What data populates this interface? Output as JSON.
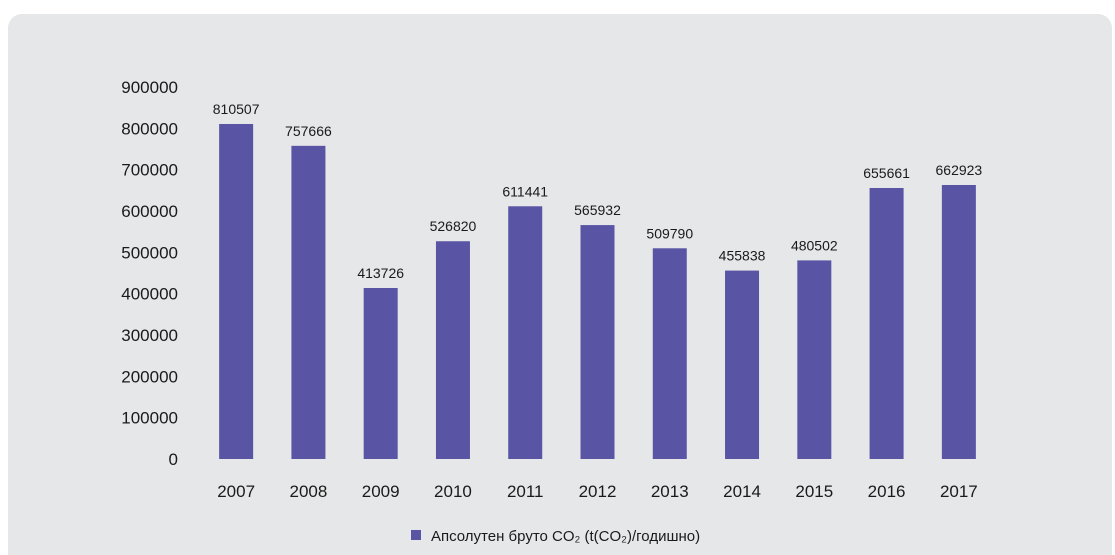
{
  "chart_data": {
    "type": "bar",
    "categories": [
      "2007",
      "2008",
      "2009",
      "2010",
      "2011",
      "2012",
      "2013",
      "2014",
      "2015",
      "2016",
      "2017"
    ],
    "series": [
      {
        "name": "Апсолутен бруто CO₂ (t(CO₂)/годишно)",
        "values": [
          810507,
          757666,
          413726,
          526820,
          611441,
          565932,
          509790,
          455838,
          480502,
          655661,
          662923
        ]
      }
    ],
    "title": "",
    "xlabel": "",
    "ylabel": "",
    "ylim": [
      0,
      900000
    ],
    "yticks": [
      0,
      100000,
      200000,
      300000,
      400000,
      500000,
      600000,
      700000,
      800000,
      900000
    ],
    "data_labels": true,
    "grid": false,
    "legend_position": "bottom",
    "colors": {
      "bar": "#5a54a4",
      "panel": "#e6e7e8"
    }
  }
}
